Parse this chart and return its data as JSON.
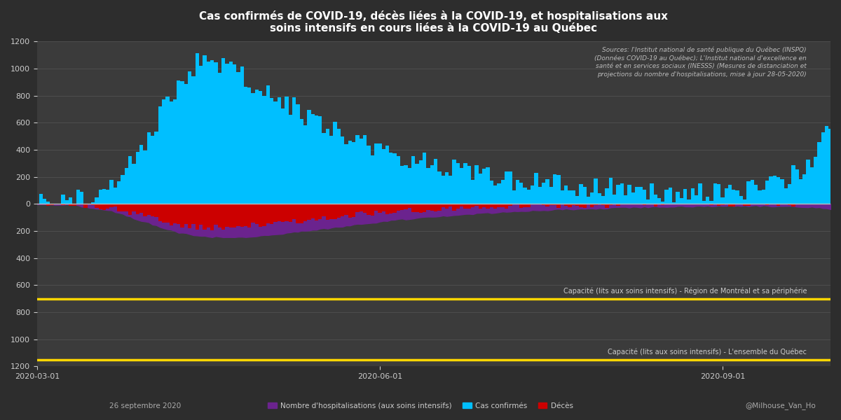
{
  "title": "Cas confirmés de COVID-19, décès liées à la COVID-19, et hospitalisations aux\nsoins intensifs en cours liées à la COVID-19 au Québec",
  "background_color": "#2d2d2d",
  "plot_bg_color": "#3b3b3b",
  "ylim": [
    -1200,
    1200
  ],
  "yticks": [
    -1200,
    -1000,
    -800,
    -600,
    -400,
    -200,
    0,
    200,
    400,
    600,
    800,
    1000,
    1200
  ],
  "capacity_montreal": -700,
  "capacity_quebec": -1150,
  "capacity_montreal_label": "Capacité (lits aux soins intensifs) - Région de Montréal et sa périphérie",
  "capacity_quebec_label": "Capacité (lits aux soins intensifs) - L'ensemble du Québec",
  "capacity_color": "#FFD700",
  "confirmed_color": "#00BFFF",
  "icu_color": "#6B238E",
  "deaths_color": "#CC0000",
  "zero_line_color": "#BBBBBB",
  "grid_color": "#555555",
  "text_color": "#CCCCCC",
  "source_text": "Sources: l'Institut national de santé publique du Québec (INSPQ)\n(Données COVID-19 au Québec); L'Institut national d'excellence en\nsanté et en services sociaux (INESSS) (Mesures de distanciation et\nprojections du nombre d'hospitalisations, mise à jour 28-05-2020)",
  "date_label": "26 septembre 2020",
  "watermark": "@Milhouse_Van_Ho",
  "legend_hosp": "Nombre d'hospitalisations (aux soins intensifs)",
  "legend_confirmed": "Cas confirmés",
  "legend_deaths": "Décès",
  "start_date": "2020-03-01",
  "x_tick_dates": [
    "2020-03-01",
    "2020-06-01",
    "2020-09-01"
  ]
}
